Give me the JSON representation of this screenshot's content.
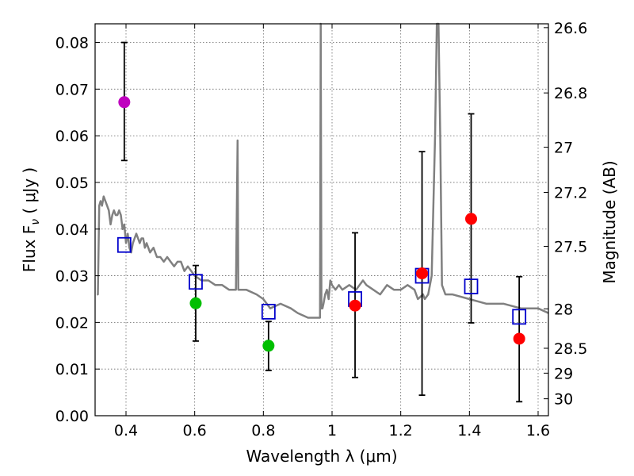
{
  "chart_data": {
    "type": "scatter",
    "xlabel": "Wavelength  λ (μm)",
    "ylabel": "Flux  F",
    "ylabel_sub": "ν",
    "ylabel_unit": " ( μJy )",
    "ylabel_right": "Magnitude (AB)",
    "xlim": [
      0.31,
      1.63
    ],
    "ylim": [
      0.0,
      0.084
    ],
    "grid": true,
    "x_ticks": [
      0.4,
      0.6,
      0.8,
      1.0,
      1.2,
      1.4,
      1.6
    ],
    "x_tick_labels": [
      "0.4",
      "0.6",
      "0.8",
      "1",
      "1.2",
      "1.4",
      "1.6"
    ],
    "y_ticks": [
      0.0,
      0.01,
      0.02,
      0.03,
      0.04,
      0.05,
      0.06,
      0.07,
      0.08
    ],
    "y_tick_labels": [
      "0.00",
      "0.01",
      "0.02",
      "0.03",
      "0.04",
      "0.05",
      "0.06",
      "0.07",
      "0.08"
    ],
    "mag_ticks": [
      "26.6",
      "26.8",
      "27",
      "27.2",
      "27.5",
      "28",
      "28.5",
      "29",
      "30"
    ],
    "colors": {
      "sed": "#808080",
      "model": "#0000cc",
      "errorbar": "#000000",
      "magenta": "#bf00bf",
      "green": "#00bf00",
      "red": "#ff0000"
    },
    "series": [
      {
        "name": "observed",
        "points": [
          {
            "x": 0.395,
            "y": 0.0672,
            "err_low": 0.0547,
            "err_high": 0.08,
            "color": "magenta"
          },
          {
            "x": 0.603,
            "y": 0.0241,
            "err_low": 0.016,
            "err_high": 0.0322,
            "color": "green"
          },
          {
            "x": 0.815,
            "y": 0.015,
            "err_low": 0.0097,
            "err_high": 0.0202,
            "color": "green"
          },
          {
            "x": 1.067,
            "y": 0.0236,
            "err_low": 0.0082,
            "err_high": 0.0392,
            "color": "red"
          },
          {
            "x": 1.262,
            "y": 0.0305,
            "err_low": 0.0044,
            "err_high": 0.0566,
            "color": "red"
          },
          {
            "x": 1.405,
            "y": 0.0422,
            "err_low": 0.0199,
            "err_high": 0.0647,
            "color": "red"
          },
          {
            "x": 1.545,
            "y": 0.0165,
            "err_low": 0.003,
            "err_high": 0.0298,
            "color": "red"
          }
        ]
      },
      {
        "name": "model",
        "points": [
          {
            "x": 0.395,
            "y": 0.0366
          },
          {
            "x": 0.603,
            "y": 0.0287
          },
          {
            "x": 0.815,
            "y": 0.0223
          },
          {
            "x": 1.067,
            "y": 0.025
          },
          {
            "x": 1.262,
            "y": 0.03
          },
          {
            "x": 1.405,
            "y": 0.0277
          },
          {
            "x": 1.545,
            "y": 0.0212
          }
        ]
      },
      {
        "name": "sed",
        "x": [
          0.315,
          0.318,
          0.322,
          0.326,
          0.33,
          0.335,
          0.34,
          0.345,
          0.35,
          0.355,
          0.36,
          0.365,
          0.37,
          0.375,
          0.38,
          0.385,
          0.39,
          0.395,
          0.4,
          0.405,
          0.41,
          0.415,
          0.42,
          0.425,
          0.43,
          0.435,
          0.44,
          0.445,
          0.45,
          0.455,
          0.46,
          0.47,
          0.48,
          0.49,
          0.5,
          0.51,
          0.52,
          0.53,
          0.54,
          0.55,
          0.56,
          0.57,
          0.58,
          0.59,
          0.6,
          0.62,
          0.64,
          0.66,
          0.68,
          0.7,
          0.72,
          0.725,
          0.727,
          0.73,
          0.75,
          0.78,
          0.8,
          0.82,
          0.85,
          0.88,
          0.9,
          0.93,
          0.95,
          0.965,
          0.967,
          0.969,
          0.972,
          0.975,
          0.98,
          0.985,
          0.99,
          0.995,
          1.0,
          1.01,
          1.02,
          1.03,
          1.05,
          1.07,
          1.09,
          1.1,
          1.12,
          1.14,
          1.16,
          1.18,
          1.2,
          1.22,
          1.24,
          1.25,
          1.265,
          1.27,
          1.28,
          1.29,
          1.3,
          1.305,
          1.31,
          1.315,
          1.32,
          1.33,
          1.35,
          1.4,
          1.45,
          1.5,
          1.55,
          1.6,
          1.63
        ],
        "y": [
          0.026,
          0.026,
          0.045,
          0.046,
          0.045,
          0.047,
          0.046,
          0.045,
          0.044,
          0.041,
          0.043,
          0.044,
          0.043,
          0.043,
          0.044,
          0.043,
          0.04,
          0.041,
          0.037,
          0.039,
          0.036,
          0.035,
          0.037,
          0.038,
          0.039,
          0.038,
          0.037,
          0.038,
          0.038,
          0.036,
          0.037,
          0.035,
          0.036,
          0.034,
          0.034,
          0.033,
          0.034,
          0.033,
          0.032,
          0.033,
          0.033,
          0.031,
          0.032,
          0.031,
          0.03,
          0.029,
          0.029,
          0.028,
          0.028,
          0.027,
          0.027,
          0.059,
          0.027,
          0.027,
          0.027,
          0.026,
          0.025,
          0.023,
          0.024,
          0.023,
          0.022,
          0.021,
          0.021,
          0.021,
          0.084,
          0.023,
          0.023,
          0.024,
          0.026,
          0.027,
          0.025,
          0.029,
          0.028,
          0.027,
          0.028,
          0.027,
          0.028,
          0.027,
          0.029,
          0.028,
          0.027,
          0.026,
          0.028,
          0.027,
          0.027,
          0.028,
          0.027,
          0.025,
          0.026,
          0.025,
          0.026,
          0.03,
          0.06,
          0.084,
          0.084,
          0.06,
          0.028,
          0.026,
          0.026,
          0.025,
          0.024,
          0.024,
          0.023,
          0.023,
          0.022
        ]
      }
    ]
  }
}
